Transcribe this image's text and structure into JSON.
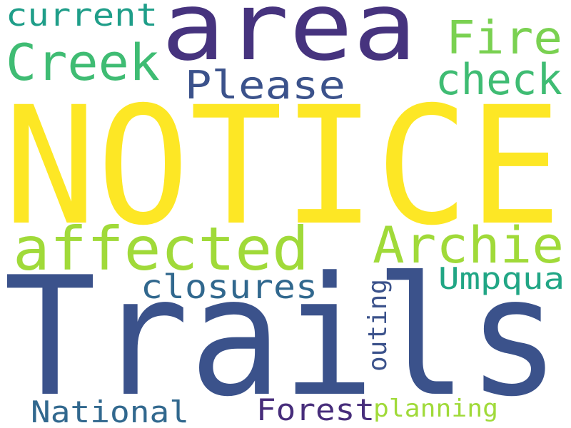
{
  "words": [
    {
      "key": "notice",
      "text": "NOTICE",
      "color": "#fde725"
    },
    {
      "key": "trails",
      "text": "Trails",
      "color": "#3b528b"
    },
    {
      "key": "area",
      "text": "area",
      "color": "#46337e"
    },
    {
      "key": "affected",
      "text": "affected",
      "color": "#a0da39"
    },
    {
      "key": "archie",
      "text": "Archie",
      "color": "#a0da39"
    },
    {
      "key": "creek",
      "text": "Creek",
      "color": "#3fbc73"
    },
    {
      "key": "fire",
      "text": "Fire",
      "color": "#7ad151"
    },
    {
      "key": "check",
      "text": "check",
      "color": "#3fbc73"
    },
    {
      "key": "please",
      "text": "Please",
      "color": "#3b528b"
    },
    {
      "key": "current",
      "text": "current",
      "color": "#1f9e89"
    },
    {
      "key": "closures",
      "text": "closures",
      "color": "#31688e"
    },
    {
      "key": "umpqua",
      "text": "Umpqua",
      "color": "#21a685"
    },
    {
      "key": "outing",
      "text": "outing",
      "color": "#3b528b"
    },
    {
      "key": "national",
      "text": "National",
      "color": "#31688e"
    },
    {
      "key": "forest",
      "text": "Forest",
      "color": "#472d7b"
    },
    {
      "key": "planning",
      "text": "planning",
      "color": "#a0da39"
    }
  ]
}
